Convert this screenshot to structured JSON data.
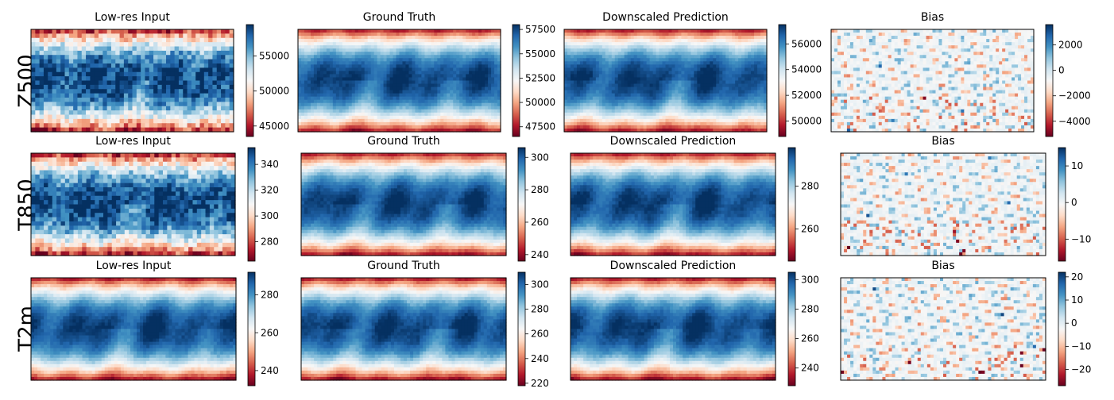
{
  "colors": {
    "cmap": [
      "#67001f",
      "#b2182b",
      "#d6604d",
      "#f4a582",
      "#fddbc7",
      "#f7f7f7",
      "#d1e5f0",
      "#92c5de",
      "#4393c3",
      "#2166ac",
      "#053061"
    ]
  },
  "chart_data": [
    {
      "type": "heatmap",
      "row_label": "Z500",
      "panels": [
        {
          "title": "Low-res Input",
          "colorbar": {
            "range": [
              43500,
              59500
            ],
            "ticks": [
              45000,
              50000,
              55000
            ],
            "tick_labels": [
              "45000",
              "50000",
              "55000"
            ]
          },
          "field_style": "pixelated"
        },
        {
          "title": "Ground Truth",
          "colorbar": {
            "range": [
              46500,
              58000
            ],
            "ticks": [
              47500,
              50000,
              52500,
              55000,
              57500
            ],
            "tick_labels": [
              "47500",
              "50000",
              "52500",
              "55000",
              "57500"
            ]
          },
          "field_style": "smooth"
        },
        {
          "title": "Downscaled Prediction",
          "colorbar": {
            "range": [
              48800,
              57500
            ],
            "ticks": [
              50000,
              52000,
              54000,
              56000
            ],
            "tick_labels": [
              "50000",
              "52000",
              "54000",
              "56000"
            ]
          },
          "field_style": "smooth"
        },
        {
          "title": "Bias",
          "colorbar": {
            "range": [
              -5200,
              3600
            ],
            "ticks": [
              -4000,
              -2000,
              0,
              2000
            ],
            "tick_labels": [
              "−4000",
              "−2000",
              "0",
              "2000"
            ]
          },
          "field_style": "bias"
        }
      ]
    },
    {
      "type": "heatmap",
      "row_label": "T850",
      "panels": [
        {
          "title": "Low-res Input",
          "colorbar": {
            "range": [
              265,
              353
            ],
            "ticks": [
              280,
              300,
              320,
              340
            ],
            "tick_labels": [
              "280",
              "300",
              "320",
              "340"
            ]
          },
          "field_style": "pixelated"
        },
        {
          "title": "Ground Truth",
          "colorbar": {
            "range": [
              236,
              306
            ],
            "ticks": [
              240,
              260,
              280,
              300
            ],
            "tick_labels": [
              "240",
              "260",
              "280",
              "300"
            ]
          },
          "field_style": "smooth"
        },
        {
          "title": "Downscaled Prediction",
          "colorbar": {
            "range": [
              245,
              298
            ],
            "ticks": [
              260,
              280
            ],
            "tick_labels": [
              "260",
              "280"
            ]
          },
          "field_style": "smooth"
        },
        {
          "title": "Bias",
          "colorbar": {
            "range": [
              -16,
              15
            ],
            "ticks": [
              -10,
              0,
              10
            ],
            "tick_labels": [
              "−10",
              "0",
              "10"
            ]
          },
          "field_style": "bias"
        }
      ]
    },
    {
      "type": "heatmap",
      "row_label": "T2m",
      "panels": [
        {
          "title": "Low-res Input",
          "colorbar": {
            "range": [
              232,
              292
            ],
            "ticks": [
              240,
              260,
              280
            ],
            "tick_labels": [
              "240",
              "260",
              "280"
            ]
          },
          "field_style": "coarse"
        },
        {
          "title": "Ground Truth",
          "colorbar": {
            "range": [
              218,
              310
            ],
            "ticks": [
              220,
              240,
              260,
              280,
              300
            ],
            "tick_labels": [
              "220",
              "240",
              "260",
              "280",
              "300"
            ]
          },
          "field_style": "smooth"
        },
        {
          "title": "Downscaled Prediction",
          "colorbar": {
            "range": [
              228,
              305
            ],
            "ticks": [
              240,
              260,
              280,
              300
            ],
            "tick_labels": [
              "240",
              "260",
              "280",
              "300"
            ]
          },
          "field_style": "smooth"
        },
        {
          "title": "Bias",
          "colorbar": {
            "range": [
              -27,
              22
            ],
            "ticks": [
              -20,
              -10,
              0,
              10,
              20
            ],
            "tick_labels": [
              "−20",
              "−10",
              "0",
              "10",
              "20"
            ]
          },
          "field_style": "bias"
        }
      ]
    }
  ]
}
